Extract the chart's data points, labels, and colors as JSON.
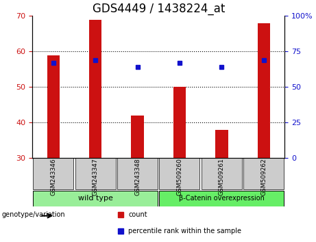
{
  "title": "GDS4449 / 1438224_at",
  "categories": [
    "GSM243346",
    "GSM243347",
    "GSM243348",
    "GSM509260",
    "GSM509261",
    "GSM509262"
  ],
  "bar_values": [
    59,
    69,
    42,
    50,
    38,
    68
  ],
  "bar_baseline": 30,
  "percentile_values": [
    67,
    69,
    64,
    67,
    64,
    69
  ],
  "left_ylim": [
    30,
    70
  ],
  "right_ylim": [
    0,
    100
  ],
  "left_yticks": [
    30,
    40,
    50,
    60,
    70
  ],
  "right_yticks": [
    0,
    25,
    50,
    75,
    100
  ],
  "right_yticklabels": [
    "0",
    "25",
    "50",
    "75",
    "100%"
  ],
  "bar_color": "#cc1111",
  "percentile_color": "#1111cc",
  "grid_color": "#000000",
  "background_color": "#ffffff",
  "plot_bg": "#ffffff",
  "wild_type_label": "wild type",
  "beta_catenin_label": "β-Catenin overexpression",
  "wild_type_color": "#99ee99",
  "beta_catenin_color": "#66ee66",
  "genotype_label": "genotype/variation",
  "legend_count": "count",
  "legend_percentile": "percentile rank within the sample",
  "xlabel_bg": "#cccccc",
  "title_fontsize": 12,
  "axis_fontsize": 9,
  "tick_fontsize": 8
}
